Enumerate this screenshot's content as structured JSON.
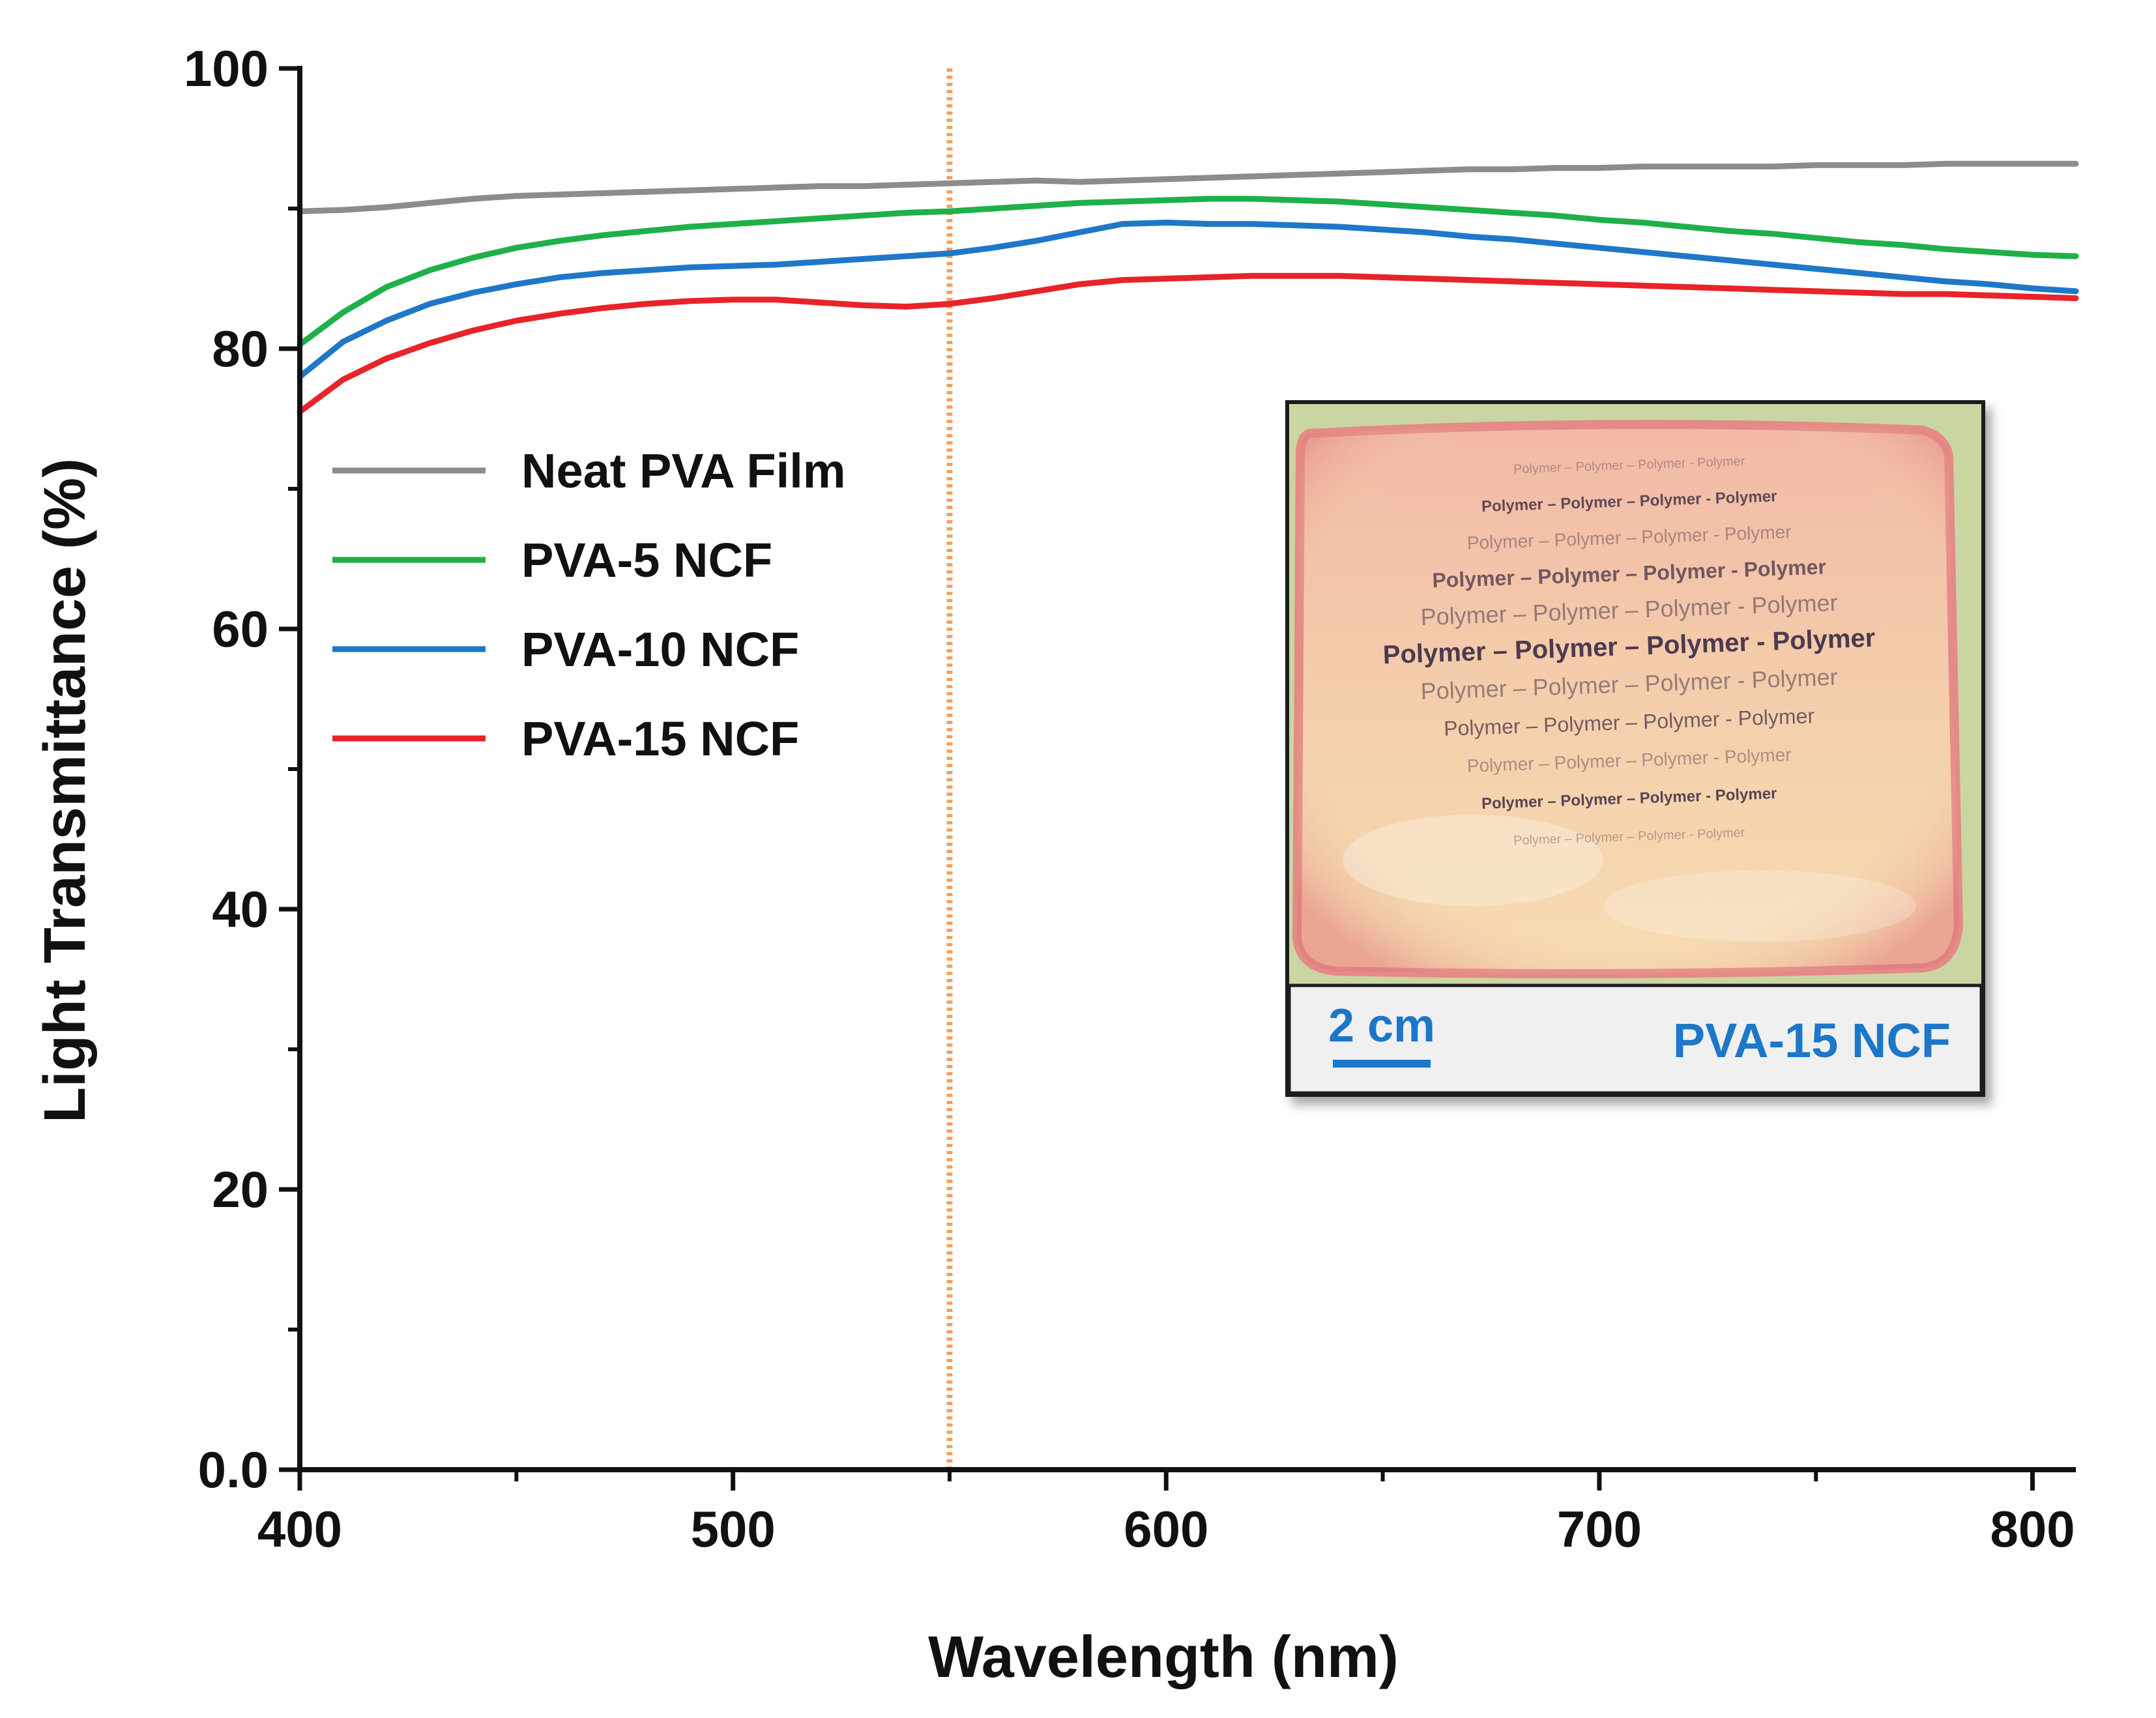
{
  "chart_data": {
    "type": "line",
    "title": "",
    "xlabel": "Wavelength (nm)",
    "ylabel": "Light Transmittance (%)",
    "xlim": [
      400,
      810
    ],
    "ylim": [
      0,
      100
    ],
    "x_ticks": [
      400,
      500,
      600,
      700,
      800
    ],
    "x_tick_labels": [
      "400",
      "500",
      "600",
      "700",
      "800"
    ],
    "y_ticks": [
      0,
      20,
      40,
      60,
      80,
      100
    ],
    "y_tick_labels": [
      "0.0",
      "20",
      "40",
      "60",
      "80",
      "100"
    ],
    "grid": false,
    "legend_position": "upper-left",
    "reference_line": {
      "x": 550,
      "color": "#f4a060",
      "style": "dotted"
    },
    "x": [
      400,
      410,
      420,
      430,
      440,
      450,
      460,
      470,
      480,
      490,
      500,
      510,
      520,
      530,
      540,
      550,
      560,
      570,
      580,
      590,
      600,
      610,
      620,
      630,
      640,
      650,
      660,
      670,
      680,
      690,
      700,
      710,
      720,
      730,
      740,
      750,
      760,
      770,
      780,
      790,
      800,
      810
    ],
    "series": [
      {
        "name": "Neat PVA Film",
        "color": "#8c8c8c",
        "values": [
          89.8,
          89.9,
          90.1,
          90.4,
          90.7,
          90.9,
          91.0,
          91.1,
          91.2,
          91.3,
          91.4,
          91.5,
          91.6,
          91.6,
          91.7,
          91.8,
          91.9,
          92.0,
          91.9,
          92.0,
          92.1,
          92.2,
          92.3,
          92.4,
          92.5,
          92.6,
          92.7,
          92.8,
          92.8,
          92.9,
          92.9,
          93.0,
          93.0,
          93.0,
          93.0,
          93.1,
          93.1,
          93.1,
          93.2,
          93.2,
          93.2,
          93.2
        ]
      },
      {
        "name": "PVA-5 NCF",
        "color": "#1fb04a",
        "values": [
          80.3,
          82.6,
          84.4,
          85.6,
          86.5,
          87.2,
          87.7,
          88.1,
          88.4,
          88.7,
          88.9,
          89.1,
          89.3,
          89.5,
          89.7,
          89.8,
          90.0,
          90.2,
          90.4,
          90.5,
          90.6,
          90.7,
          90.7,
          90.6,
          90.5,
          90.3,
          90.1,
          89.9,
          89.7,
          89.5,
          89.2,
          89.0,
          88.7,
          88.4,
          88.2,
          87.9,
          87.6,
          87.4,
          87.1,
          86.9,
          86.7,
          86.6
        ]
      },
      {
        "name": "PVA-10 NCF",
        "color": "#1f77c8",
        "values": [
          78.0,
          80.5,
          82.0,
          83.2,
          84.0,
          84.6,
          85.1,
          85.4,
          85.6,
          85.8,
          85.9,
          86.0,
          86.2,
          86.4,
          86.6,
          86.8,
          87.2,
          87.7,
          88.3,
          88.9,
          89.0,
          88.9,
          88.9,
          88.8,
          88.7,
          88.5,
          88.3,
          88.0,
          87.8,
          87.5,
          87.2,
          86.9,
          86.6,
          86.3,
          86.0,
          85.7,
          85.4,
          85.1,
          84.8,
          84.6,
          84.3,
          84.1
        ]
      },
      {
        "name": "PVA-15 NCF",
        "color": "#e8232a",
        "values": [
          75.5,
          77.8,
          79.3,
          80.4,
          81.3,
          82.0,
          82.5,
          82.9,
          83.2,
          83.4,
          83.5,
          83.5,
          83.3,
          83.1,
          83.0,
          83.2,
          83.6,
          84.1,
          84.6,
          84.9,
          85.0,
          85.1,
          85.2,
          85.2,
          85.2,
          85.1,
          85.0,
          84.9,
          84.8,
          84.7,
          84.6,
          84.5,
          84.4,
          84.3,
          84.2,
          84.1,
          84.0,
          83.9,
          83.9,
          83.8,
          83.7,
          83.6
        ]
      }
    ],
    "inset": {
      "caption": "PVA-15 NCF",
      "scale_bar_label": "2 cm",
      "film_text_lines": [
        "Polymer – Polymer – Polymer - Polymer",
        "Polymer – Polymer – Polymer - Polymer",
        "Polymer – Polymer – Polymer - Polymer",
        "Polymer – Polymer – Polymer - Polymer",
        "Polymer – Polymer – Polymer - Polymer",
        "Polymer – Polymer – Polymer - Polymer",
        "Polymer – Polymer – Polymer - Polymer",
        "Polymer – Polymer – Polymer - Polymer",
        "Polymer – Polymer – Polymer - Polymer",
        "Polymer – Polymer – Polymer - Polymer",
        "Polymer – Polymer – Polymer - Polymer"
      ],
      "accent_color": "#1f77c8"
    }
  }
}
